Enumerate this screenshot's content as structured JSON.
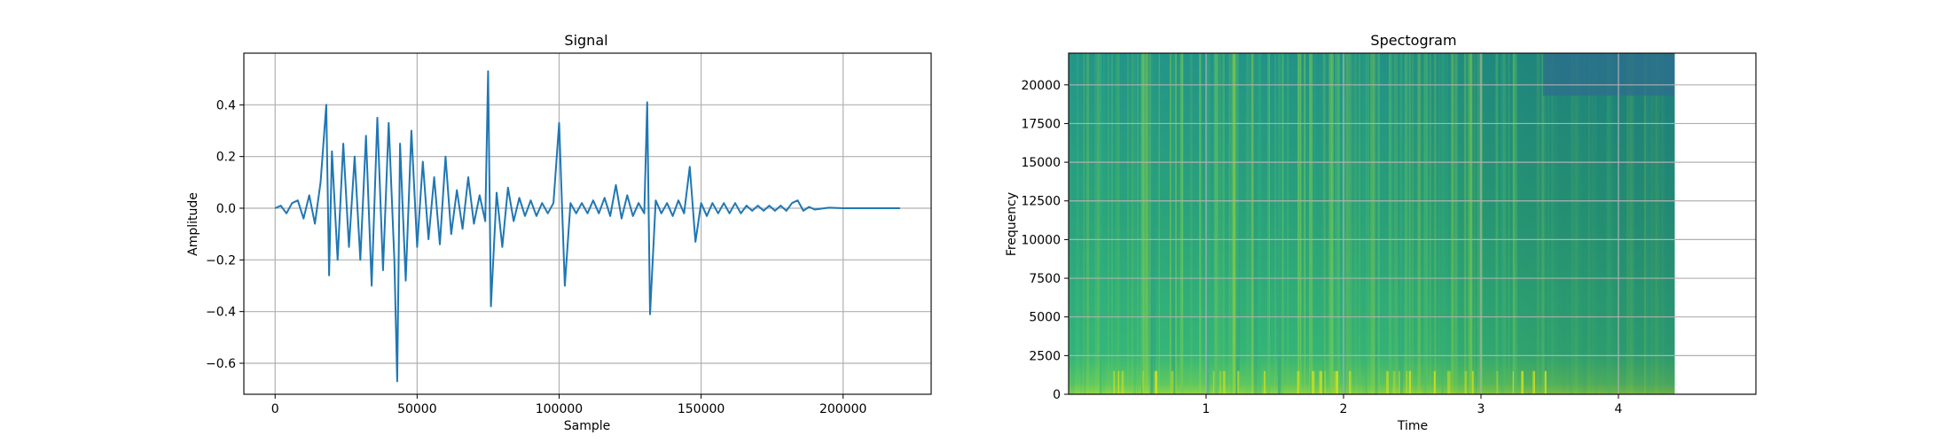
{
  "chart_data": [
    {
      "type": "line",
      "title": "Signal",
      "xlabel": "Sample",
      "ylabel": "Amplitude",
      "xlim": [
        -11000,
        231000
      ],
      "ylim": [
        -0.72,
        0.6
      ],
      "grid": true,
      "xticks": [
        0,
        50000,
        100000,
        150000,
        200000
      ],
      "xtick_labels": [
        "0",
        "50000",
        "100000",
        "150000",
        "200000"
      ],
      "yticks": [
        -0.6,
        -0.4,
        -0.2,
        0.0,
        0.2,
        0.4
      ],
      "ytick_labels": [
        "−0.6",
        "−0.4",
        "−0.2",
        "0.0",
        "0.2",
        "0.4"
      ],
      "color": "#1f77b4",
      "series": [
        {
          "x": [
            0,
            2000,
            4000,
            6000,
            8000,
            10000,
            12000,
            14000,
            16000,
            18000,
            19000,
            20000,
            22000,
            24000,
            26000,
            28000,
            30000,
            32000,
            34000,
            36000,
            38000,
            40000,
            42000,
            43000,
            44000,
            46000,
            48000,
            50000,
            52000,
            54000,
            56000,
            58000,
            60000,
            62000,
            64000,
            66000,
            68000,
            70000,
            72000,
            74000,
            75000,
            76000,
            78000,
            80000,
            82000,
            84000,
            86000,
            88000,
            90000,
            92000,
            94000,
            96000,
            98000,
            100000,
            102000,
            104000,
            106000,
            108000,
            110000,
            112000,
            114000,
            116000,
            118000,
            120000,
            122000,
            124000,
            126000,
            128000,
            130000,
            131000,
            132000,
            134000,
            136000,
            138000,
            140000,
            142000,
            144000,
            146000,
            148000,
            150000,
            152000,
            154000,
            156000,
            158000,
            160000,
            162000,
            164000,
            166000,
            168000,
            170000,
            172000,
            174000,
            176000,
            178000,
            180000,
            182000,
            184000,
            186000,
            188000,
            190000,
            195000,
            200000,
            205000,
            210000,
            215000,
            220000
          ],
          "y": [
            0.0,
            0.01,
            -0.02,
            0.02,
            0.03,
            -0.04,
            0.05,
            -0.06,
            0.1,
            0.4,
            -0.26,
            0.22,
            -0.2,
            0.25,
            -0.15,
            0.2,
            -0.2,
            0.28,
            -0.3,
            0.35,
            -0.24,
            0.33,
            -0.2,
            -0.67,
            0.25,
            -0.28,
            0.3,
            -0.15,
            0.18,
            -0.12,
            0.12,
            -0.14,
            0.2,
            -0.1,
            0.07,
            -0.08,
            0.12,
            -0.06,
            0.05,
            -0.05,
            0.53,
            -0.38,
            0.06,
            -0.15,
            0.08,
            -0.05,
            0.04,
            -0.03,
            0.03,
            -0.03,
            0.02,
            -0.02,
            0.02,
            0.33,
            -0.3,
            0.02,
            -0.02,
            0.02,
            -0.02,
            0.03,
            -0.02,
            0.04,
            -0.03,
            0.09,
            -0.04,
            0.05,
            -0.03,
            0.02,
            -0.02,
            0.41,
            -0.41,
            0.03,
            -0.02,
            0.02,
            -0.03,
            0.03,
            -0.02,
            0.16,
            -0.13,
            0.02,
            -0.03,
            0.02,
            -0.02,
            0.02,
            -0.02,
            0.02,
            -0.02,
            0.01,
            -0.01,
            0.01,
            -0.01,
            0.01,
            -0.01,
            0.01,
            -0.01,
            0.02,
            0.03,
            -0.01,
            0.005,
            -0.005,
            0.002,
            0.0,
            0.0,
            0.0,
            0.0,
            0.0
          ]
        }
      ]
    },
    {
      "type": "heatmap",
      "title": "Spectogram",
      "xlabel": "Time",
      "ylabel": "Frequency",
      "xlim": [
        0.0,
        5.0
      ],
      "ylim": [
        0,
        22050
      ],
      "data_extent_x": [
        0.0,
        4.41
      ],
      "grid": true,
      "xticks": [
        1,
        2,
        3,
        4
      ],
      "xtick_labels": [
        "1",
        "2",
        "3",
        "4"
      ],
      "yticks": [
        0,
        2500,
        5000,
        7500,
        10000,
        12500,
        15000,
        17500,
        20000
      ],
      "ytick_labels": [
        "0",
        "2500",
        "5000",
        "7500",
        "10000",
        "12500",
        "15000",
        "17500",
        "20000"
      ],
      "colormap": [
        "#2d6e8e",
        "#21918c",
        "#27ad81",
        "#5ec962",
        "#addc30",
        "#fde725"
      ]
    }
  ]
}
